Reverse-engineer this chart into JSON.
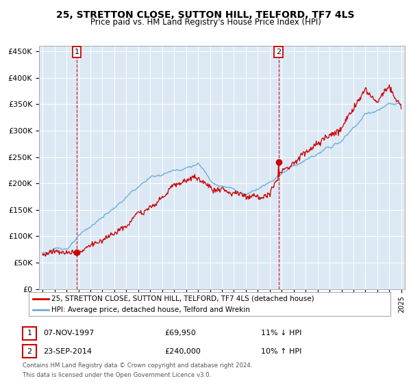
{
  "title": "25, STRETTON CLOSE, SUTTON HILL, TELFORD, TF7 4LS",
  "subtitle": "Price paid vs. HM Land Registry's House Price Index (HPI)",
  "legend_line1": "25, STRETTON CLOSE, SUTTON HILL, TELFORD, TF7 4LS (detached house)",
  "legend_line2": "HPI: Average price, detached house, Telford and Wrekin",
  "annotation1_label": "1",
  "annotation1_date": "07-NOV-1997",
  "annotation1_price": "£69,950",
  "annotation1_hpi": "11% ↓ HPI",
  "annotation2_label": "2",
  "annotation2_date": "23-SEP-2014",
  "annotation2_price": "£240,000",
  "annotation2_hpi": "10% ↑ HPI",
  "footnote1": "Contains HM Land Registry data © Crown copyright and database right 2024.",
  "footnote2": "This data is licensed under the Open Government Licence v3.0.",
  "sale1_year": 1997.85,
  "sale1_value": 69950,
  "sale2_year": 2014.73,
  "sale2_value": 240000,
  "hpi_color": "#6baed6",
  "price_color": "#cc0000",
  "dot_color": "#cc0000",
  "vline_color": "#cc0000",
  "bg_color": "#dce9f5",
  "grid_color": "#ffffff",
  "ylim": [
    0,
    460000
  ],
  "xlim_start": 1994.7,
  "xlim_end": 2025.3
}
